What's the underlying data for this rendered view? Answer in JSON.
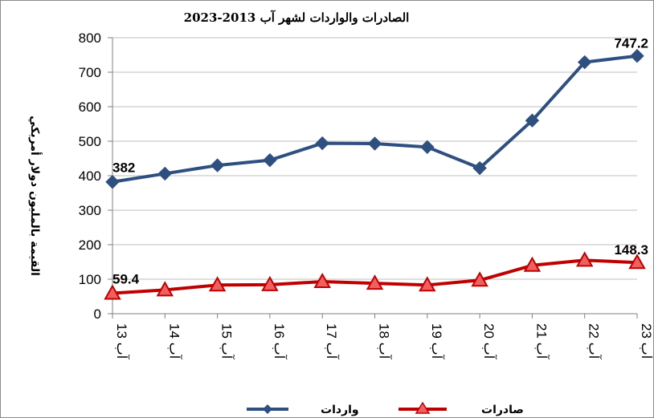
{
  "chart_data": {
    "type": "line",
    "title": "الصادرات والواردات لشهر آب 2013-2023",
    "xlabel": "",
    "ylabel": "القيمة بالمليون دولار أمريكي",
    "categories": [
      "آب 13",
      "آب 14",
      "آب 15",
      "آب 16",
      "آب 17",
      "آب 18",
      "آب 19",
      "آب 20",
      "آب 21",
      "آب 22",
      "آب 23"
    ],
    "ylim": [
      0,
      800
    ],
    "yticks": [
      0,
      100,
      200,
      300,
      400,
      500,
      600,
      700,
      800
    ],
    "grid": true,
    "legend_position": "bottom",
    "series": [
      {
        "name": "واردات",
        "color": "#2e4f7f",
        "marker": "diamond",
        "values": [
          382,
          406,
          430,
          445,
          494,
          493,
          483,
          422,
          560,
          729,
          747.2
        ]
      },
      {
        "name": "صادرات",
        "color": "#c00000",
        "marker_fill": "#f06060",
        "marker": "triangle",
        "values": [
          59.4,
          69,
          83,
          84,
          93,
          88,
          83,
          97,
          140,
          155,
          148.3
        ]
      }
    ],
    "annotations": [
      {
        "series": 0,
        "index": 0,
        "text": "382"
      },
      {
        "series": 0,
        "index": 10,
        "text": "747.2"
      },
      {
        "series": 1,
        "index": 0,
        "text": "59.4"
      },
      {
        "series": 1,
        "index": 10,
        "text": "148.3"
      }
    ]
  }
}
